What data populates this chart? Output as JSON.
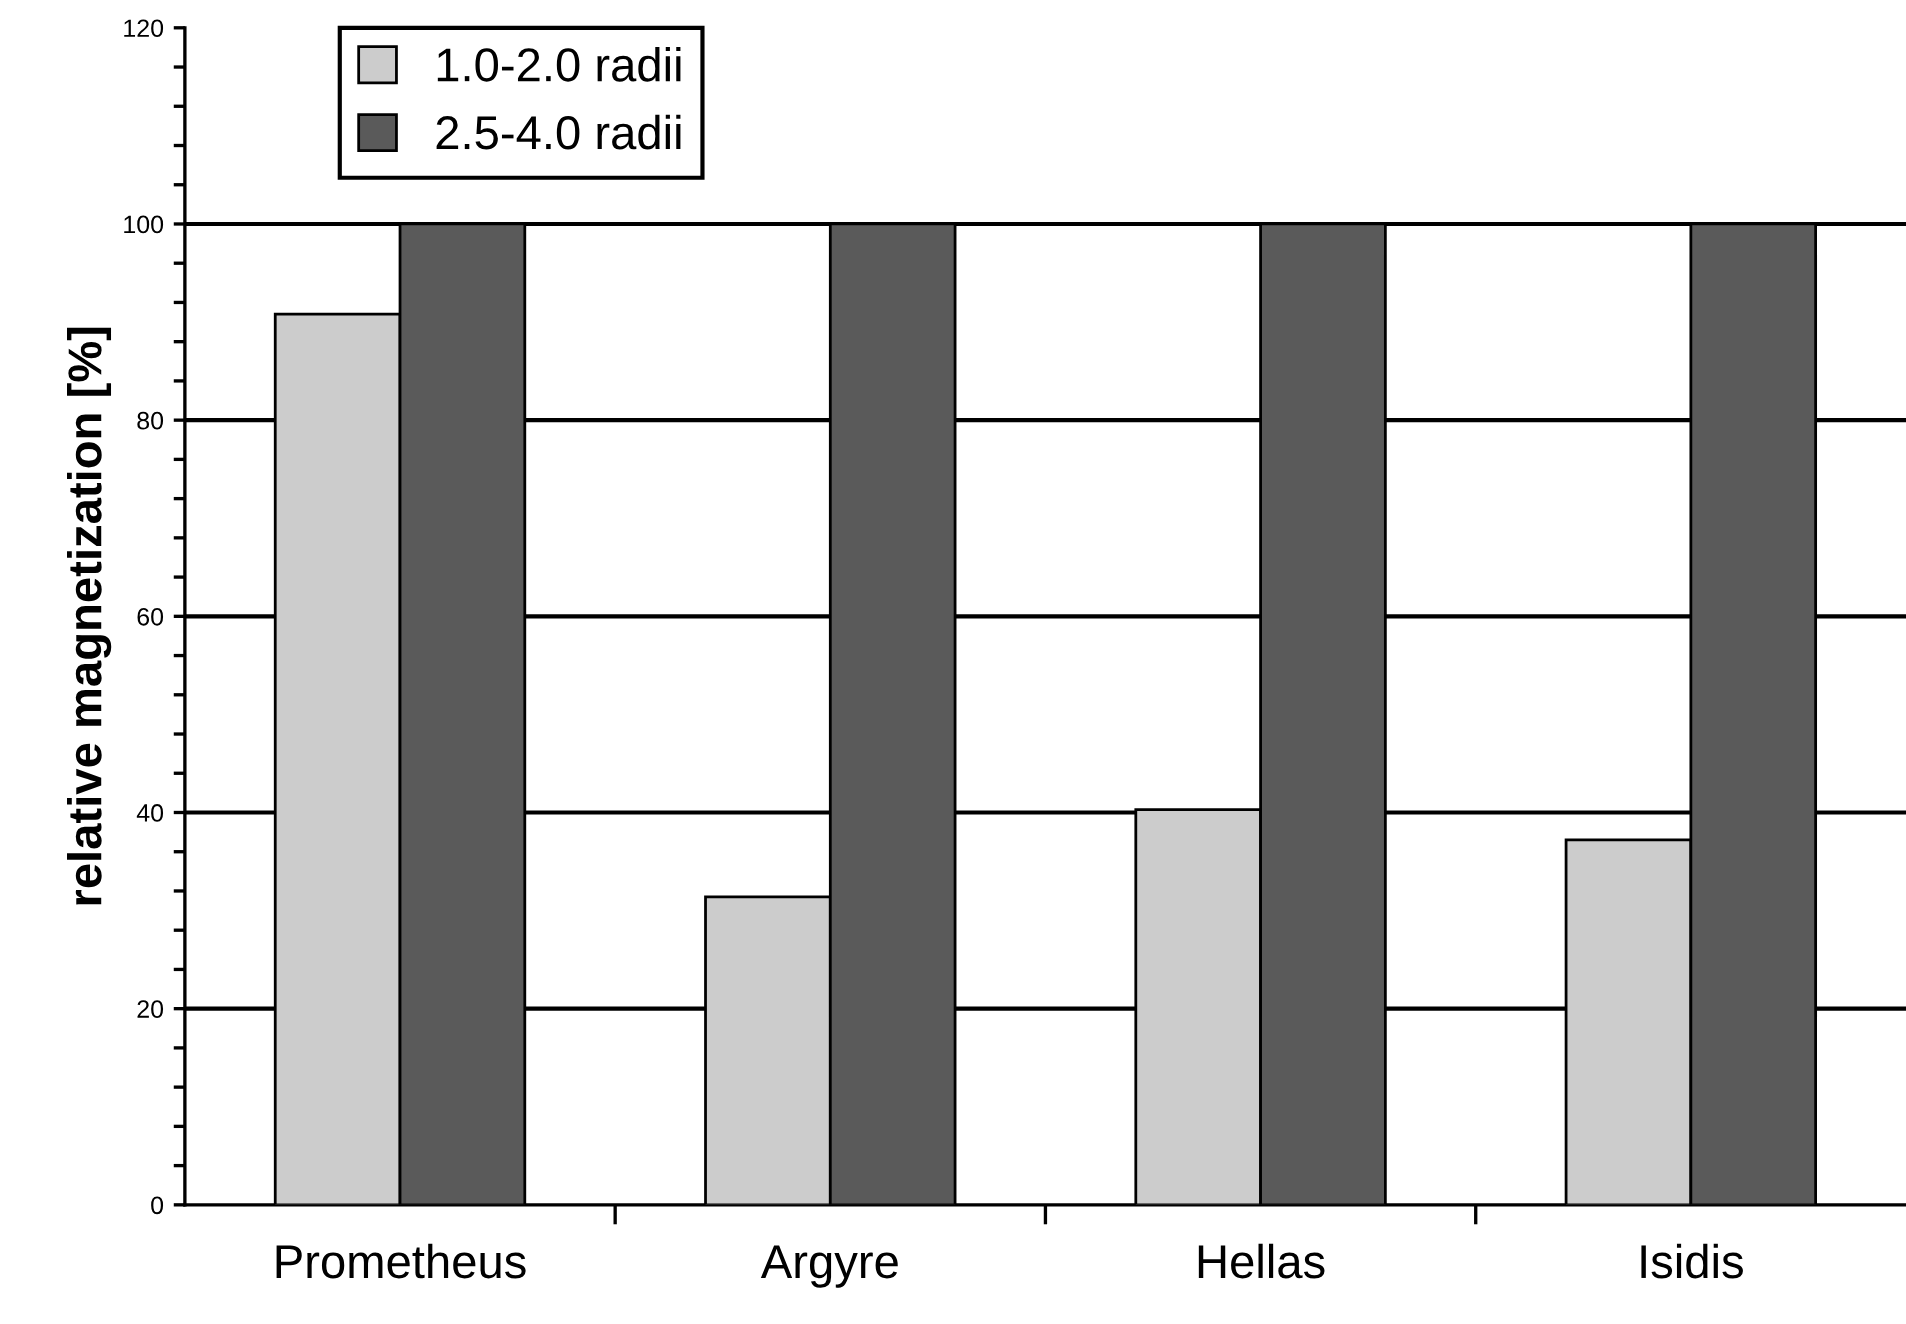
{
  "chart_data": {
    "type": "bar",
    "ylabel": "relative magnetization [%]",
    "categories": [
      "Prometheus",
      "Argyre",
      "Hellas",
      "Isidis"
    ],
    "series": [
      {
        "name": "1.0-2.0 radii",
        "color": "#cccccc",
        "values": [
          90.8,
          31.4,
          40.3,
          37.2
        ]
      },
      {
        "name": "2.5-4.0 radii",
        "color": "#5a5a5a",
        "values": [
          100,
          100,
          100,
          100
        ]
      }
    ],
    "ylim": [
      0,
      120
    ],
    "yticks": [
      0,
      {
        "value": 4,
        "label": null
      },
      {
        "value": 8,
        "label": null
      },
      {
        "value": 12,
        "label": null
      },
      {
        "value": 16,
        "label": null
      },
      20,
      {
        "value": 24,
        "label": null
      },
      {
        "value": 28,
        "label": null
      },
      {
        "value": 32,
        "label": null
      },
      {
        "value": 36,
        "label": null
      },
      40,
      {
        "value": 44,
        "label": null
      },
      {
        "value": 48,
        "label": null
      },
      {
        "value": 52,
        "label": null
      },
      {
        "value": 56,
        "label": null
      },
      60,
      {
        "value": 64,
        "label": null
      },
      {
        "value": 68,
        "label": null
      },
      {
        "value": 72,
        "label": null
      },
      {
        "value": 76,
        "label": null
      },
      80,
      {
        "value": 84,
        "label": null
      },
      {
        "value": 88,
        "label": null
      },
      {
        "value": 92,
        "label": null
      },
      {
        "value": 96,
        "label": null
      },
      100,
      {
        "value": 104,
        "label": null
      },
      {
        "value": 108,
        "label": null
      },
      {
        "value": 112,
        "label": null
      },
      {
        "value": 116,
        "label": null
      },
      120
    ],
    "grid": "y",
    "legend": "top left"
  }
}
